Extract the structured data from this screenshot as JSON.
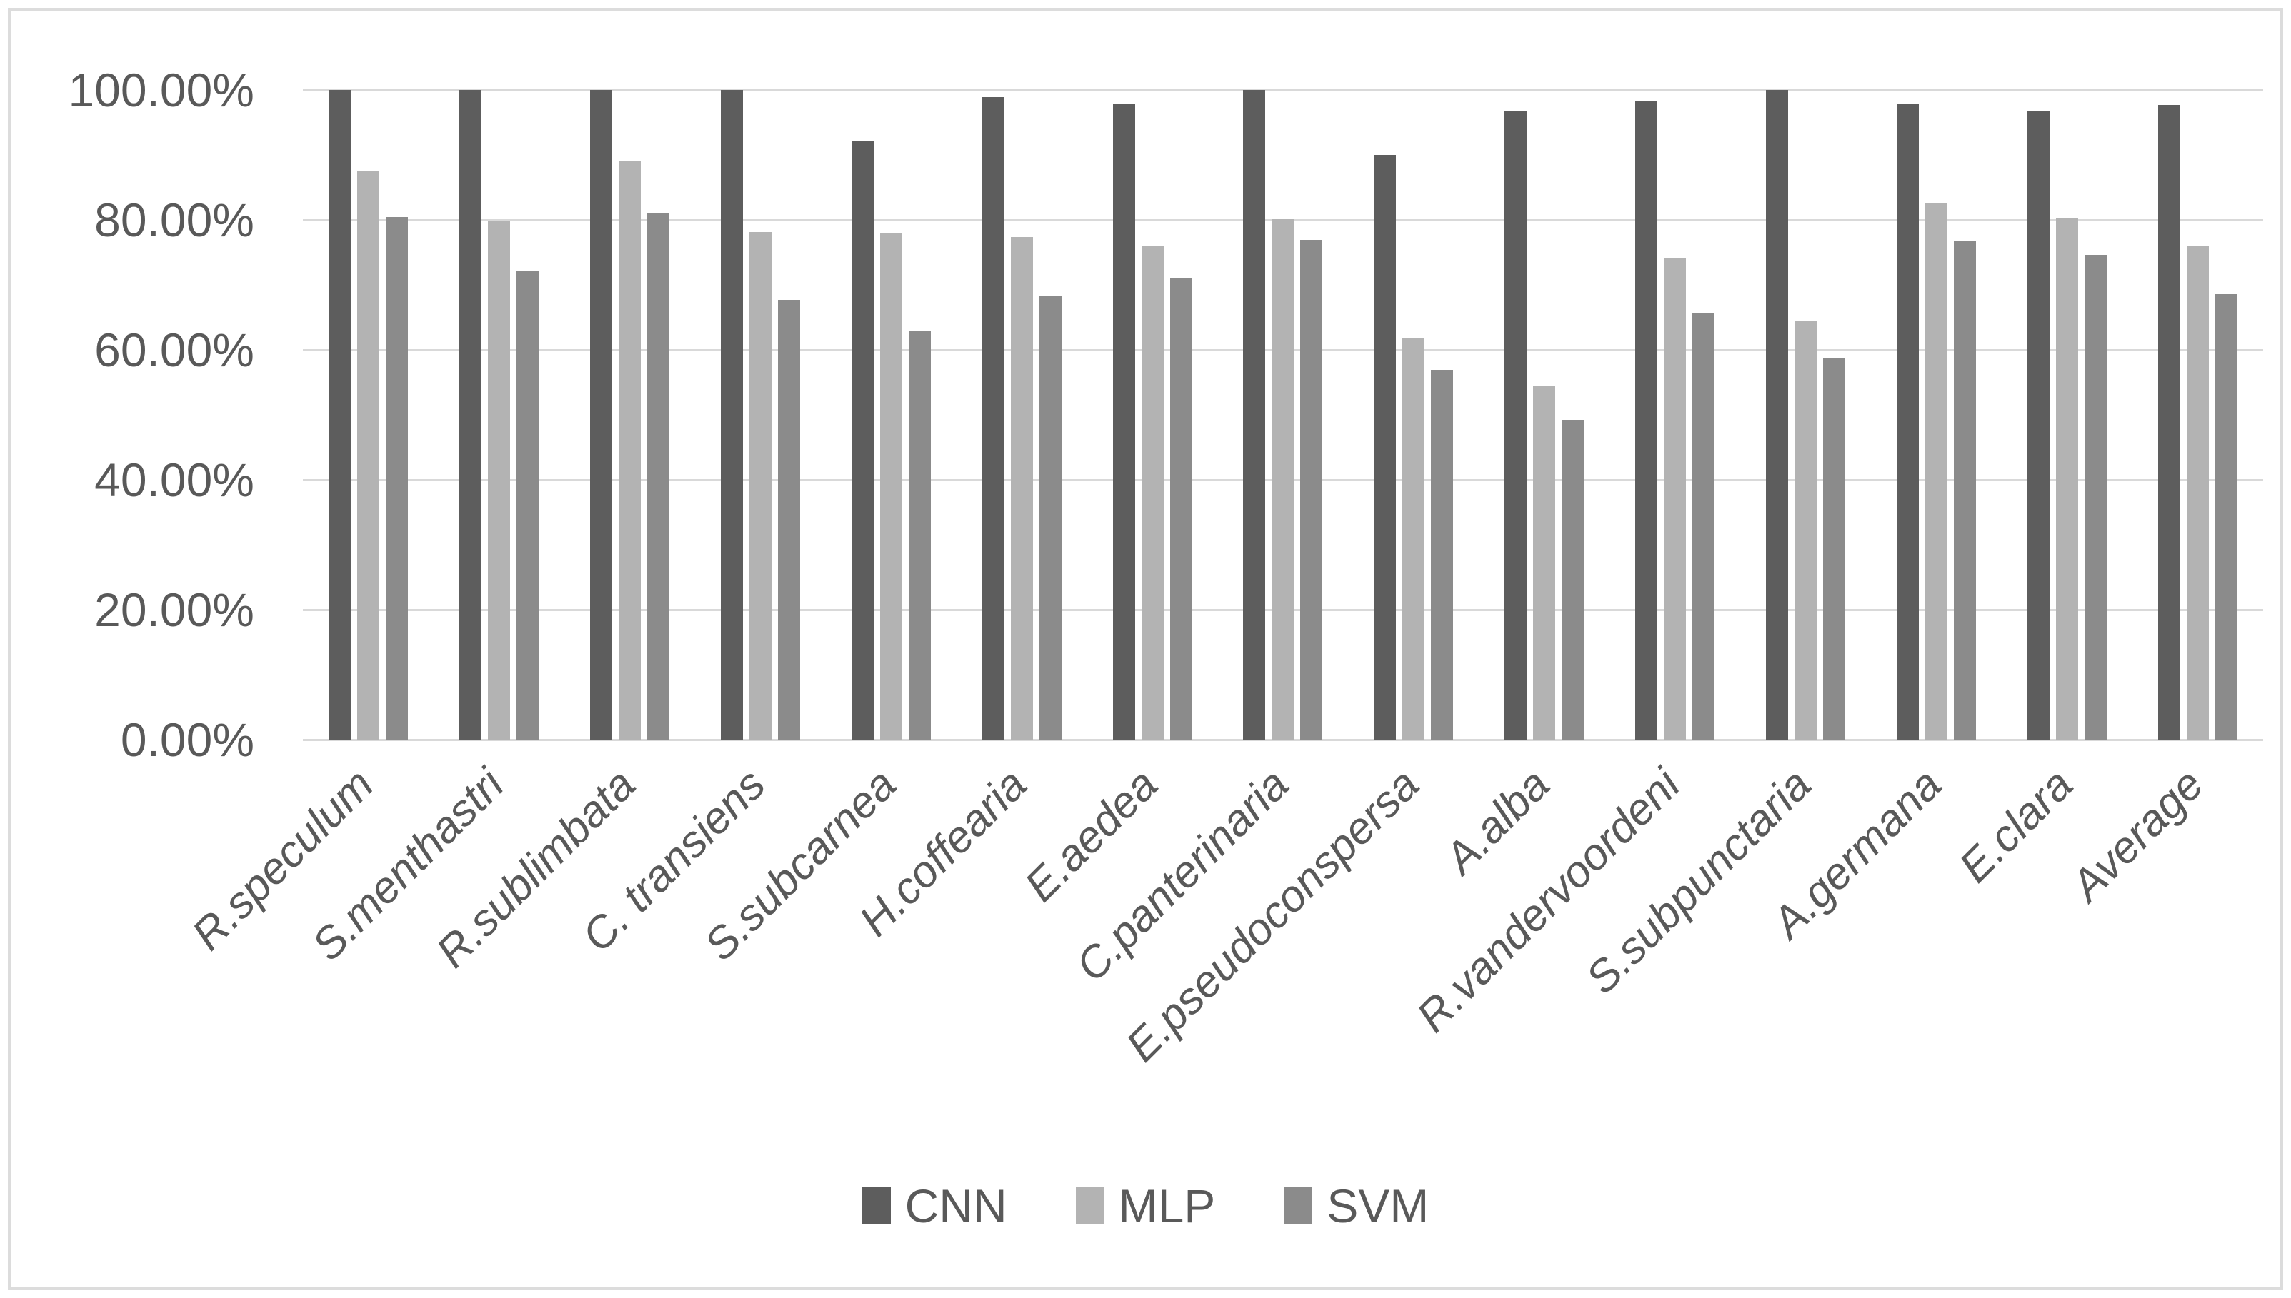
{
  "chart_data": {
    "type": "bar",
    "title": "",
    "categories": [
      "R.speculum",
      "S.menthastri",
      "R.sublimbata",
      "C. transiens",
      "S.subcarnea",
      "H.coffearia",
      "E.aedea",
      "C.panterinaria",
      "E.pseudoconspersa",
      "A.alba",
      "R.vandervoordeni",
      "S.subpunctaria",
      "A.germana",
      "E.clara",
      "Average"
    ],
    "series": [
      {
        "name": "CNN",
        "color": "#5d5d5d",
        "values": [
          100,
          100,
          100,
          100,
          92.1,
          98.9,
          97.9,
          100,
          90.0,
          96.8,
          98.2,
          100,
          97.9,
          96.7,
          97.7
        ]
      },
      {
        "name": "MLP",
        "color": "#b3b3b3",
        "values": [
          87.5,
          79.8,
          89.0,
          78.1,
          77.9,
          77.4,
          76.1,
          80.1,
          61.9,
          54.5,
          74.2,
          64.5,
          82.6,
          80.2,
          75.9
        ]
      },
      {
        "name": "SVM",
        "color": "#8b8b8b",
        "values": [
          80.4,
          72.2,
          81.1,
          67.7,
          62.9,
          68.4,
          71.1,
          76.9,
          56.9,
          49.2,
          65.6,
          58.7,
          76.7,
          74.6,
          68.6
        ]
      }
    ],
    "y_axis": {
      "min": 0,
      "max": 100,
      "step": 20,
      "tick_labels": [
        "0.00%",
        "20.00%",
        "40.00%",
        "60.00%",
        "80.00%",
        "100.00%"
      ],
      "format": "percent"
    },
    "x_axis": {
      "label_rotation_deg": -45
    },
    "legend": {
      "position": "bottom",
      "labels": [
        "CNN",
        "MLP",
        "SVM"
      ]
    },
    "grid": {
      "horizontal": true,
      "vertical": false,
      "color": "#d9d9d9"
    },
    "ylim": [
      0,
      100
    ]
  },
  "style": {
    "axis_text_color": "#595959",
    "border_color": "#dcdcdc",
    "background": "#ffffff",
    "gridline_color": "#d9d9d9"
  }
}
